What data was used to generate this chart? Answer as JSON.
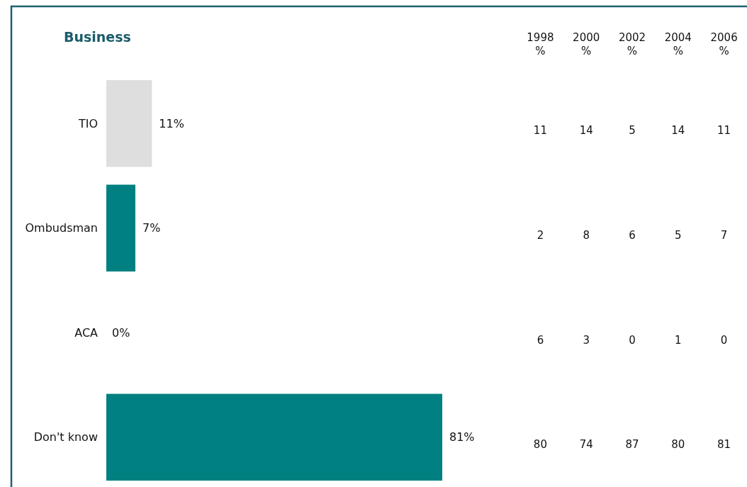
{
  "chart_data": [
    {
      "type": "bar",
      "orientation": "horizontal",
      "title": "Business",
      "categories": [
        "TIO",
        "Ombudsman",
        "ACA",
        "Don't know"
      ],
      "values": [
        11,
        7,
        0,
        81
      ],
      "colors": [
        "#dedede",
        "#008080",
        "#008080",
        "#008080"
      ],
      "value_labels": [
        "11%",
        "7%",
        "0%",
        "81%"
      ]
    },
    {
      "type": "heatmap",
      "categories": [
        "1998\n%",
        "2000\n%",
        "2002\n%",
        "2004\n%",
        "2006\n%"
      ],
      "y_categories": [
        null,
        null,
        null,
        null
      ],
      "cells": [
        [
          11,
          14,
          5,
          14,
          11
        ],
        [
          2,
          8,
          6,
          5,
          7
        ],
        [
          6,
          3,
          0,
          1,
          0
        ],
        [
          80,
          74,
          87,
          80,
          81
        ]
      ],
      "data_labels": true
    }
  ]
}
